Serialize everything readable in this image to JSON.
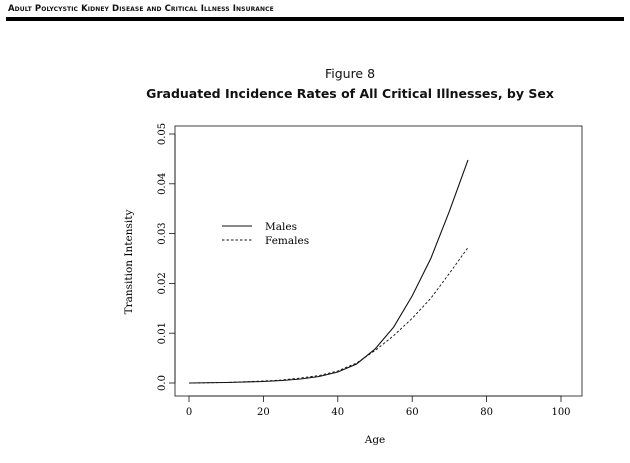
{
  "header": {
    "running_title": "Adult Polycystic Kidney Disease and Critical Illness Insurance"
  },
  "figure": {
    "label": "Figure 8",
    "title": "Graduated Incidence Rates of All Critical Illnesses, by Sex"
  },
  "chart_data": {
    "type": "line",
    "title": "Graduated Incidence Rates of All Critical Illnesses, by Sex",
    "xlabel": "Age",
    "ylabel": "Transition Intensity",
    "xlim": [
      0,
      100
    ],
    "ylim": [
      0,
      0.05
    ],
    "xticks": [
      "0",
      "20",
      "40",
      "60",
      "80",
      "100"
    ],
    "yticks": [
      "0.0",
      "0.01",
      "0.02",
      "0.03",
      "0.04",
      "0.05"
    ],
    "grid": false,
    "legend": "upper-left",
    "series": [
      {
        "name": "Males",
        "style": "solid",
        "x": [
          0,
          10,
          20,
          25,
          30,
          35,
          40,
          45,
          50,
          55,
          60,
          65,
          70,
          75
        ],
        "y": [
          0.0,
          0.0001,
          0.0003,
          0.0005,
          0.0008,
          0.0013,
          0.0022,
          0.0038,
          0.0068,
          0.0112,
          0.0175,
          0.025,
          0.0345,
          0.0448
        ]
      },
      {
        "name": "Females",
        "style": "dashed",
        "x": [
          0,
          10,
          20,
          25,
          30,
          35,
          40,
          45,
          50,
          55,
          60,
          65,
          70,
          75
        ],
        "y": [
          0.0,
          0.0001,
          0.0004,
          0.0006,
          0.001,
          0.0015,
          0.0024,
          0.004,
          0.0065,
          0.0095,
          0.013,
          0.017,
          0.022,
          0.0272
        ]
      }
    ]
  }
}
